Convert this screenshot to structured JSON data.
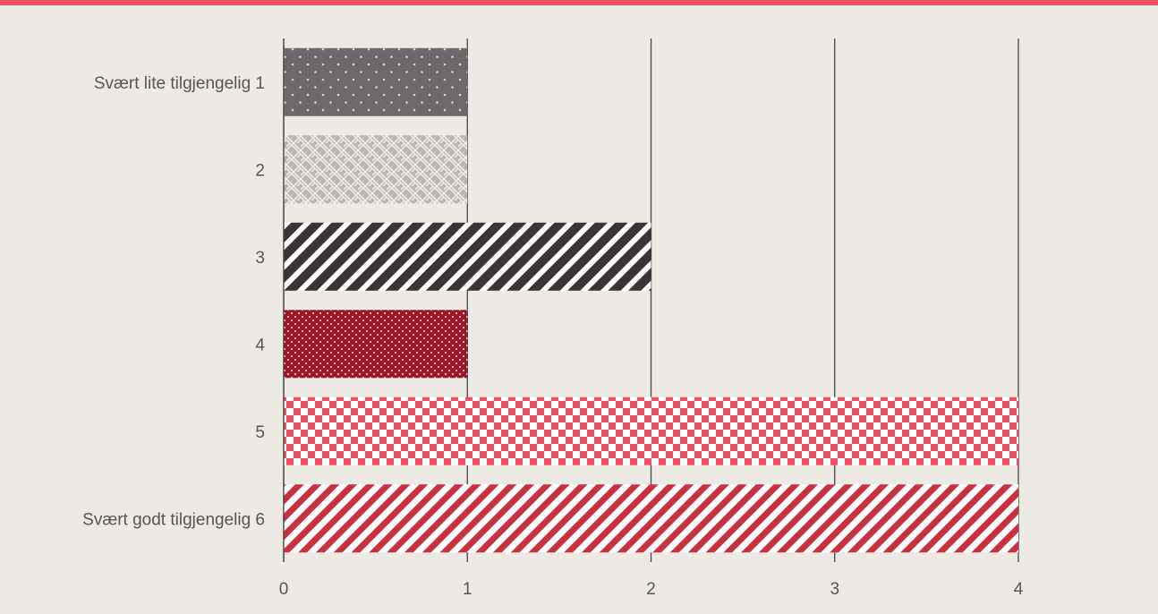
{
  "chart_data": {
    "type": "bar",
    "orientation": "horizontal",
    "categories": [
      "Svært lite tilgjengelig 1",
      "2",
      "3",
      "4",
      "5",
      "Svært godt tilgjengelig 6"
    ],
    "values": [
      1,
      1,
      2,
      1,
      4,
      4
    ],
    "x_ticks": [
      "0",
      "1",
      "2",
      "3",
      "4"
    ],
    "xlim": [
      0,
      4
    ],
    "grid": "vertical",
    "bar_colors": [
      "#6e686b",
      "#bcb4b2",
      "#3b3437",
      "#9a1526",
      "#ee4f62",
      "#c8323f"
    ],
    "bar_patterns": [
      "dots",
      "basketweave",
      "diagonal-stripes",
      "dense-dots",
      "checker",
      "diagonal-stripes"
    ],
    "accent_color": "#ee4f62",
    "background_color": "#ede9e5"
  }
}
